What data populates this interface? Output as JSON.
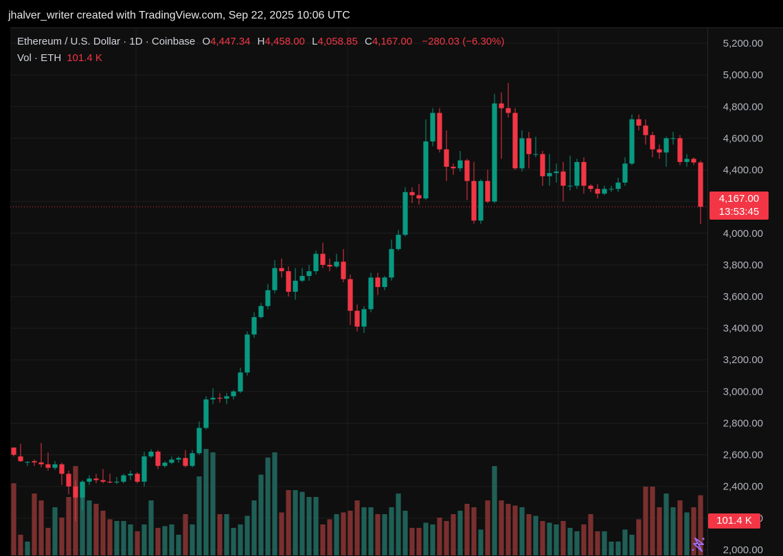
{
  "header": {
    "attribution": "jhalver_writer created with TradingView.com, Sep 22, 2025 10:06 UTC"
  },
  "legend": {
    "symbol": "Ethereum / U.S. Dollar · 1D · Coinbase",
    "open_label": "O",
    "open": "4,447.34",
    "high_label": "H",
    "high": "4,458.00",
    "low_label": "L",
    "low": "4,058.85",
    "close_label": "C",
    "close": "4,167.00",
    "change": "−280.03 (−6.30%)",
    "vol_label": "Vol · ETH",
    "vol_value": "101.4 K"
  },
  "last_price": {
    "price": "4,167.00",
    "countdown": "13:53:45"
  },
  "last_volume": "101.4 K",
  "colors": {
    "up": "#089981",
    "down": "#f23645",
    "background": "#0f0f0f",
    "grid": "#1e1e1e",
    "vol_up": "#1f5f56",
    "vol_down": "#7a2f2f"
  },
  "chart_data": {
    "type": "candlestick",
    "y_ticks": [
      "5,200.00",
      "5,000.00",
      "4,800.00",
      "4,600.00",
      "4,400.00",
      "4,200.00",
      "4,000.00",
      "3,800.00",
      "3,600.00",
      "3,400.00",
      "3,200.00",
      "3,000.00",
      "2,800.00",
      "2,600.00",
      "2,400.00",
      "2,200.00",
      "2,000.00"
    ],
    "y_tick_values": [
      5200,
      5000,
      4800,
      4600,
      4400,
      4200,
      4000,
      3800,
      3600,
      3400,
      3200,
      3000,
      2800,
      2600,
      2400,
      2200,
      2000
    ],
    "ylim": [
      1965,
      5300
    ],
    "last_price_value": 4167,
    "candles": [
      [
        2646,
        2600,
        2640,
        2590
      ],
      [
        2590,
        2560,
        2670,
        2555
      ],
      [
        2555,
        2555,
        2560,
        2530
      ],
      [
        2560,
        2552,
        2570,
        2530
      ],
      [
        2552,
        2540,
        2675,
        2520
      ],
      [
        2540,
        2518,
        2615,
        2500
      ],
      [
        2518,
        2540,
        2560,
        2505
      ],
      [
        2540,
        2480,
        2550,
        2410
      ],
      [
        2480,
        2400,
        2500,
        2350
      ],
      [
        2400,
        2330,
        2440,
        2180
      ],
      [
        2330,
        2430,
        2440,
        2250
      ],
      [
        2430,
        2450,
        2470,
        2410
      ],
      [
        2450,
        2440,
        2480,
        2420
      ],
      [
        2440,
        2430,
        2510,
        2420
      ],
      [
        2430,
        2425,
        2480,
        2420
      ],
      [
        2425,
        2430,
        2460,
        2415
      ],
      [
        2430,
        2470,
        2480,
        2420
      ],
      [
        2470,
        2480,
        2500,
        2440
      ],
      [
        2480,
        2430,
        2490,
        2420
      ],
      [
        2430,
        2590,
        2620,
        2400
      ],
      [
        2590,
        2620,
        2635,
        2580
      ],
      [
        2620,
        2530,
        2630,
        2510
      ],
      [
        2530,
        2550,
        2560,
        2520
      ],
      [
        2550,
        2570,
        2590,
        2540
      ],
      [
        2570,
        2580,
        2590,
        2550
      ],
      [
        2580,
        2530,
        2630,
        2520
      ],
      [
        2530,
        2610,
        2630,
        2520
      ],
      [
        2610,
        2770,
        2810,
        2600
      ],
      [
        2770,
        2950,
        2970,
        2760
      ],
      [
        2950,
        2960,
        3020,
        2920
      ],
      [
        2960,
        2955,
        2990,
        2930
      ],
      [
        2955,
        2970,
        2990,
        2920
      ],
      [
        2970,
        3000,
        3010,
        2950
      ],
      [
        3000,
        3120,
        3150,
        2990
      ],
      [
        3120,
        3360,
        3380,
        3100
      ],
      [
        3360,
        3470,
        3500,
        3340
      ],
      [
        3470,
        3540,
        3560,
        3460
      ],
      [
        3540,
        3640,
        3680,
        3520
      ],
      [
        3640,
        3780,
        3830,
        3620
      ],
      [
        3780,
        3760,
        3840,
        3720
      ],
      [
        3760,
        3630,
        3790,
        3600
      ],
      [
        3630,
        3700,
        3780,
        3580
      ],
      [
        3700,
        3730,
        3780,
        3690
      ],
      [
        3730,
        3760,
        3800,
        3700
      ],
      [
        3760,
        3870,
        3890,
        3740
      ],
      [
        3870,
        3800,
        3940,
        3780
      ],
      [
        3800,
        3790,
        3840,
        3760
      ],
      [
        3790,
        3820,
        3870,
        3780
      ],
      [
        3820,
        3710,
        3900,
        3690
      ],
      [
        3710,
        3510,
        3740,
        3420
      ],
      [
        3510,
        3410,
        3550,
        3380
      ],
      [
        3410,
        3520,
        3540,
        3370
      ],
      [
        3520,
        3720,
        3750,
        3500
      ],
      [
        3720,
        3660,
        3750,
        3610
      ],
      [
        3660,
        3720,
        3730,
        3640
      ],
      [
        3720,
        3900,
        3960,
        3700
      ],
      [
        3900,
        3990,
        4020,
        3890
      ],
      [
        3990,
        4260,
        4290,
        3980
      ],
      [
        4260,
        4240,
        4290,
        4190
      ],
      [
        4240,
        4220,
        4310,
        4180
      ],
      [
        4220,
        4580,
        4720,
        4210
      ],
      [
        4580,
        4760,
        4790,
        4550
      ],
      [
        4760,
        4530,
        4790,
        4510
      ],
      [
        4530,
        4420,
        4650,
        4330
      ],
      [
        4420,
        4410,
        4440,
        4370
      ],
      [
        4410,
        4460,
        4520,
        4390
      ],
      [
        4460,
        4330,
        4470,
        4210
      ],
      [
        4330,
        4080,
        4450,
        4060
      ],
      [
        4080,
        4330,
        4340,
        4060
      ],
      [
        4330,
        4200,
        4400,
        4190
      ],
      [
        4200,
        4820,
        4880,
        4190
      ],
      [
        4820,
        4790,
        4890,
        4470
      ],
      [
        4790,
        4760,
        4950,
        4730
      ],
      [
        4760,
        4410,
        4790,
        4400
      ],
      [
        4410,
        4600,
        4650,
        4390
      ],
      [
        4600,
        4500,
        4640,
        4410
      ],
      [
        4500,
        4500,
        4610,
        4480
      ],
      [
        4500,
        4360,
        4520,
        4300
      ],
      [
        4360,
        4380,
        4500,
        4300
      ],
      [
        4380,
        4390,
        4440,
        4320
      ],
      [
        4390,
        4300,
        4450,
        4200
      ],
      [
        4300,
        4300,
        4490,
        4270
      ],
      [
        4300,
        4450,
        4470,
        4280
      ],
      [
        4450,
        4300,
        4480,
        4250
      ],
      [
        4300,
        4280,
        4310,
        4260
      ],
      [
        4280,
        4250,
        4310,
        4220
      ],
      [
        4250,
        4280,
        4300,
        4240
      ],
      [
        4280,
        4280,
        4300,
        4260
      ],
      [
        4280,
        4320,
        4350,
        4260
      ],
      [
        4320,
        4440,
        4480,
        4300
      ],
      [
        4440,
        4720,
        4750,
        4430
      ],
      [
        4720,
        4680,
        4750,
        4650
      ],
      [
        4680,
        4620,
        4720,
        4560
      ],
      [
        4620,
        4530,
        4640,
        4480
      ],
      [
        4530,
        4510,
        4560,
        4470
      ],
      [
        4510,
        4600,
        4610,
        4420
      ],
      [
        4600,
        4600,
        4640,
        4560
      ],
      [
        4600,
        4450,
        4620,
        4430
      ],
      [
        4450,
        4470,
        4500,
        4420
      ],
      [
        4470,
        4447,
        4480,
        4430
      ],
      [
        4447,
        4167,
        4458,
        4059
      ]
    ],
    "volume_max": 400,
    "volumes": [
      210,
      60,
      40,
      180,
      160,
      80,
      140,
      110,
      170,
      260,
      210,
      160,
      150,
      130,
      105,
      100,
      100,
      90,
      70,
      90,
      160,
      80,
      85,
      90,
      60,
      120,
      90,
      230,
      310,
      300,
      120,
      120,
      80,
      90,
      115,
      160,
      235,
      285,
      300,
      125,
      190,
      190,
      185,
      170,
      170,
      90,
      105,
      120,
      125,
      130,
      160,
      140,
      140,
      120,
      120,
      140,
      180,
      130,
      80,
      80,
      95,
      90,
      110,
      100,
      120,
      130,
      150,
      140,
      75,
      160,
      260,
      160,
      150,
      145,
      140,
      120,
      115,
      100,
      95,
      90,
      100,
      80,
      70,
      90,
      120,
      70,
      70,
      40,
      40,
      75,
      60,
      105,
      200,
      200,
      140,
      180,
      140,
      160,
      125,
      140,
      175
    ]
  }
}
